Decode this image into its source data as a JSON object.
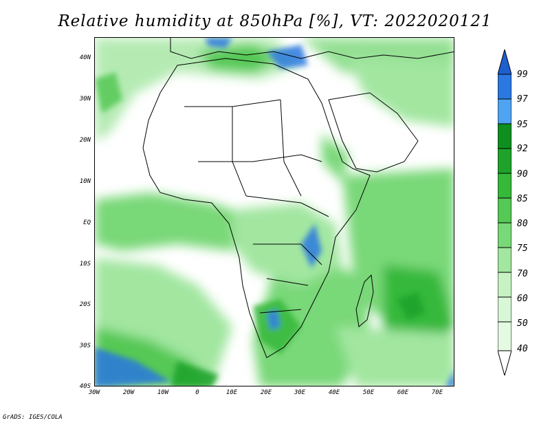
{
  "title": "Relative humidity at 850hPa [%], VT: 2022020121",
  "footer": "GrADS: IGES/COLA",
  "map": {
    "lat_labels": [
      "40N",
      "30N",
      "20N",
      "10N",
      "EQ",
      "10S",
      "20S",
      "30S",
      "40S"
    ],
    "lon_labels": [
      "30W",
      "20W",
      "10W",
      "0",
      "10E",
      "20E",
      "30E",
      "40E",
      "50E",
      "60E",
      "70E"
    ],
    "lat_range": [
      -40,
      45
    ],
    "lon_range": [
      -30,
      75
    ]
  },
  "colorbar": {
    "levels": [
      "99",
      "97",
      "95",
      "92",
      "90",
      "85",
      "80",
      "75",
      "70",
      "60",
      "50",
      "40"
    ],
    "colors": [
      "#1e5fd0",
      "#2b78e0",
      "#4fa3f0",
      "#0f8f1f",
      "#1fa22a",
      "#36b83a",
      "#55c855",
      "#79d878",
      "#a2e6a0",
      "#c6f2c4",
      "#e4fae2"
    ]
  }
}
